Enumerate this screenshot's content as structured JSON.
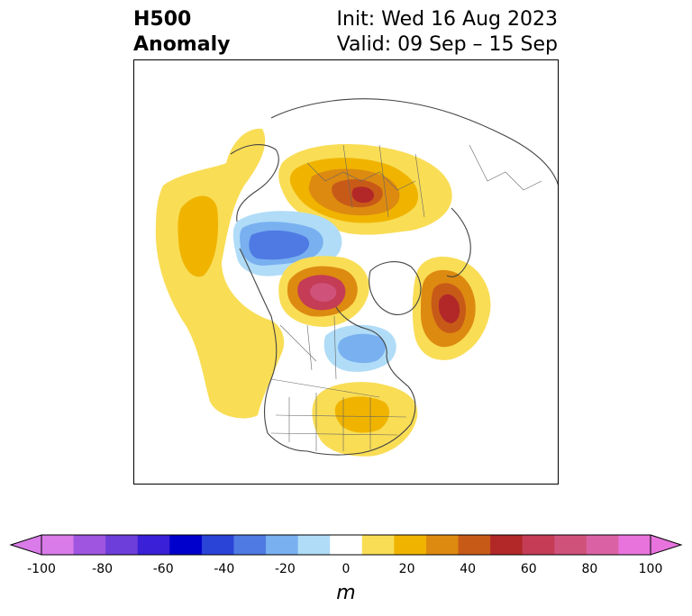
{
  "title": {
    "line1": "H500",
    "line2": "Anomaly",
    "init": "Init: Wed 16 Aug 2023",
    "valid": "Valid: 09 Sep – 15 Sep"
  },
  "colorbar": {
    "unit_label": "m",
    "tick_labels": [
      "-100",
      "-80",
      "-60",
      "-40",
      "-20",
      "0",
      "20",
      "40",
      "60",
      "80",
      "100"
    ],
    "bins": [
      -100,
      -90,
      -80,
      -70,
      -60,
      -50,
      -40,
      -30,
      -20,
      -10,
      10,
      20,
      30,
      40,
      50,
      60,
      70,
      80,
      90,
      100
    ],
    "colors": [
      "#d97be8",
      "#9f55e0",
      "#6d3ed9",
      "#3a20d6",
      "#0000cc",
      "#2a44d8",
      "#4f7ae3",
      "#78b0f0",
      "#b0dcf7",
      "#ffffff",
      "#f9dd55",
      "#f0b400",
      "#dd8a10",
      "#c85a18",
      "#b22828",
      "#c43c55",
      "#cf527a",
      "#da62a4",
      "#e873dd"
    ],
    "extend": "both"
  },
  "map": {
    "projection": "polar stereographic, North Pole",
    "anomalies": [
      {
        "region": "Siberia / Central Russia",
        "sign": "positive",
        "peak_m": 60
      },
      {
        "region": "Canadian Arctic Archipelago",
        "sign": "positive",
        "peak_m": 60
      },
      {
        "region": "Northern North Atlantic / Scandinavia",
        "sign": "positive",
        "peak_m": 50
      },
      {
        "region": "Eastern United States",
        "sign": "positive",
        "peak_m": 20
      },
      {
        "region": "North Pacific / Gulf of Alaska",
        "sign": "positive",
        "peak_m": 20
      },
      {
        "region": "Bering Sea / Eastern Siberia",
        "sign": "positive",
        "peak_m": 10
      },
      {
        "region": "Arctic Ocean / Northern Alaska",
        "sign": "negative",
        "peak_m": -40
      },
      {
        "region": "Hudson Bay / Labrador",
        "sign": "negative",
        "peak_m": -20
      }
    ]
  }
}
